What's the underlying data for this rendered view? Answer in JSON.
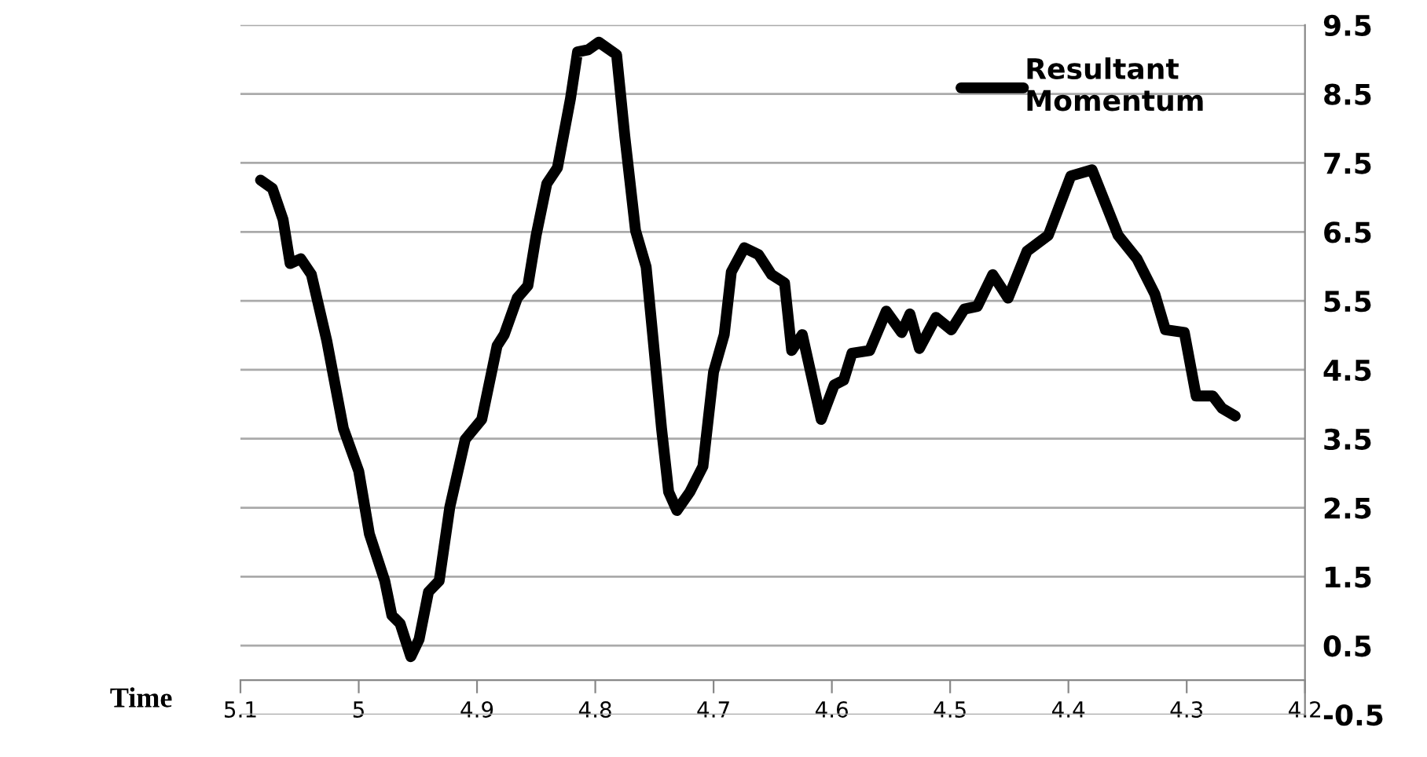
{
  "chart_data": {
    "type": "line",
    "xlabel": "Time",
    "x": [
      5.083,
      5.073,
      5.064,
      5.058,
      5.049,
      5.04,
      5.027,
      5.013,
      5.0,
      4.991,
      4.978,
      4.972,
      4.965,
      4.956,
      4.949,
      4.941,
      4.932,
      4.923,
      4.91,
      4.896,
      4.883,
      4.877,
      4.866,
      4.857,
      4.85,
      4.841,
      4.832,
      4.821,
      4.815,
      4.806,
      4.797,
      4.782,
      4.775,
      4.766,
      4.757,
      4.751,
      4.744,
      4.738,
      4.731,
      4.72,
      4.709,
      4.7,
      4.691,
      4.685,
      4.674,
      4.662,
      4.651,
      4.64,
      4.634,
      4.625,
      4.609,
      4.598,
      4.59,
      4.583,
      4.568,
      4.554,
      4.541,
      4.534,
      4.526,
      4.512,
      4.499,
      4.488,
      4.477,
      4.464,
      4.451,
      4.435,
      4.417,
      4.398,
      4.38,
      4.358,
      4.342,
      4.327,
      4.318,
      4.302,
      4.292,
      4.278,
      4.27,
      4.259
    ],
    "series": [
      {
        "name": "Resultant\nMomentum",
        "color": "#000000",
        "values": [
          7.25,
          7.13,
          6.68,
          6.04,
          6.11,
          5.88,
          4.92,
          3.65,
          3.03,
          2.12,
          1.44,
          0.94,
          0.82,
          0.34,
          0.59,
          1.28,
          1.44,
          2.51,
          3.49,
          3.78,
          4.85,
          5.01,
          5.54,
          5.72,
          6.45,
          7.2,
          7.43,
          8.43,
          9.11,
          9.14,
          9.25,
          9.07,
          7.88,
          6.52,
          5.99,
          4.92,
          3.65,
          2.73,
          2.46,
          2.73,
          3.1,
          4.47,
          5.01,
          5.92,
          6.27,
          6.17,
          5.88,
          5.76,
          4.78,
          5.01,
          3.78,
          4.28,
          4.35,
          4.74,
          4.78,
          5.35,
          5.04,
          5.31,
          4.81,
          5.26,
          5.08,
          5.38,
          5.42,
          5.88,
          5.54,
          6.22,
          6.45,
          7.31,
          7.4,
          6.45,
          6.11,
          5.6,
          5.08,
          5.04,
          4.12,
          4.12,
          3.94,
          3.83
        ]
      }
    ],
    "xlim": [
      5.1,
      4.2
    ],
    "xticks": [
      5.1,
      5,
      4.9,
      4.8,
      4.7,
      4.6,
      4.5,
      4.4,
      4.3,
      4.2
    ],
    "ylim": [
      -0.5,
      9.5
    ],
    "yticks": [
      -0.5,
      0.5,
      1.5,
      2.5,
      3.5,
      4.5,
      5.5,
      6.5,
      7.5,
      8.5,
      9.5
    ],
    "grid": "y",
    "legend": "top right",
    "marker": "none",
    "line_style": "solid"
  }
}
